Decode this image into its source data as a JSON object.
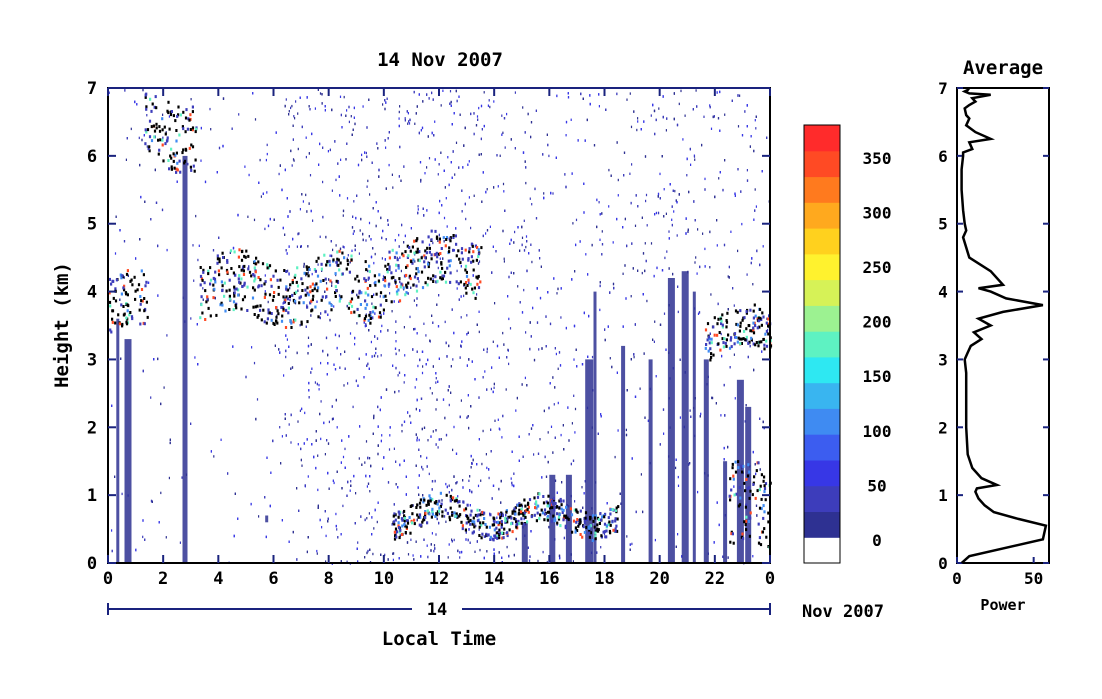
{
  "chart_data": [
    {
      "type": "heatmap",
      "title": "14 Nov 2007",
      "xlabel": "Local Time",
      "ylabel": "Height (km)",
      "xlim": [
        0,
        24
      ],
      "ylim": [
        0,
        7
      ],
      "x_ticks": [
        "0",
        "2",
        "4",
        "6",
        "8",
        "10",
        "12",
        "14",
        "16",
        "18",
        "20",
        "22",
        "0"
      ],
      "y_ticks": [
        "0",
        "1",
        "2",
        "3",
        "4",
        "5",
        "6",
        "7"
      ],
      "date_axis": {
        "day_label": "14",
        "month_label": "Nov 2007"
      },
      "colorbar": {
        "range": [
          0,
          380
        ],
        "tick_labels": [
          "0",
          "50",
          "100",
          "150",
          "200",
          "250",
          "300",
          "350"
        ],
        "colors": [
          "#ffffff",
          "#2e3192",
          "#3d3dbb",
          "#3737e6",
          "#3c5df0",
          "#3f8bf2",
          "#39b5f0",
          "#2ee8f2",
          "#5ef2c2",
          "#9cf291",
          "#d6f257",
          "#fff22e",
          "#ffd11e",
          "#ffa91e",
          "#ff7a1e",
          "#ff4a24",
          "#ff2b2b"
        ]
      },
      "features": [
        {
          "name": "cloud layer",
          "x_range": [
            1.3,
            3.2
          ],
          "height_km": [
            5.9,
            6.9
          ]
        },
        {
          "name": "cloud layer",
          "x_range": [
            3.3,
            10.0
          ],
          "height_km": [
            3.6,
            4.5
          ]
        },
        {
          "name": "cloud layer",
          "x_range": [
            10.0,
            13.5
          ],
          "height_km": [
            4.0,
            4.8
          ]
        },
        {
          "name": "boundary layer",
          "x_range": [
            10.3,
            18.5
          ],
          "height_km": [
            0.5,
            0.9
          ]
        },
        {
          "name": "boundary layer",
          "x_range": [
            22.5,
            24.0
          ],
          "height_km": [
            0.2,
            1.4
          ]
        },
        {
          "name": "cloud layer",
          "x_range": [
            0.0,
            1.4
          ],
          "height_km": [
            3.4,
            4.2
          ]
        },
        {
          "name": "cloud layer",
          "x_range": [
            21.6,
            24.0
          ],
          "height_km": [
            3.1,
            3.7
          ]
        }
      ]
    },
    {
      "type": "line",
      "title": "Average",
      "xlabel": "Power",
      "ylabel": "",
      "xlim": [
        0,
        60
      ],
      "ylim": [
        0,
        7
      ],
      "x_ticks": [
        "0",
        "50"
      ],
      "y_ticks": [
        "0",
        "1",
        "2",
        "3",
        "4",
        "5",
        "6",
        "7"
      ],
      "series": [
        {
          "x": [
            3,
            8,
            56,
            58,
            40,
            24,
            18,
            14,
            12,
            13,
            26,
            16,
            10,
            7,
            6,
            6,
            6,
            5,
            7,
            9,
            16,
            11,
            22,
            14,
            30,
            56,
            32,
            22,
            14,
            30,
            22,
            8,
            4,
            6,
            5,
            4,
            3,
            3,
            4,
            4,
            10,
            8,
            22,
            12,
            6,
            8,
            6,
            5,
            8,
            12,
            10,
            22,
            8,
            5,
            7,
            8
          ],
          "y": [
            0.0,
            0.1,
            0.35,
            0.55,
            0.65,
            0.75,
            0.85,
            0.95,
            1.05,
            1.1,
            1.15,
            1.25,
            1.4,
            1.6,
            2.0,
            2.5,
            2.8,
            3.0,
            3.1,
            3.2,
            3.3,
            3.4,
            3.5,
            3.6,
            3.7,
            3.8,
            3.9,
            4.0,
            4.05,
            4.1,
            4.3,
            4.5,
            4.8,
            4.9,
            5.0,
            5.2,
            5.5,
            5.8,
            6.0,
            6.05,
            6.1,
            6.2,
            6.25,
            6.35,
            6.45,
            6.55,
            6.6,
            6.7,
            6.75,
            6.8,
            6.85,
            6.9,
            6.92,
            6.95,
            6.97,
            7.0
          ]
        }
      ]
    }
  ]
}
